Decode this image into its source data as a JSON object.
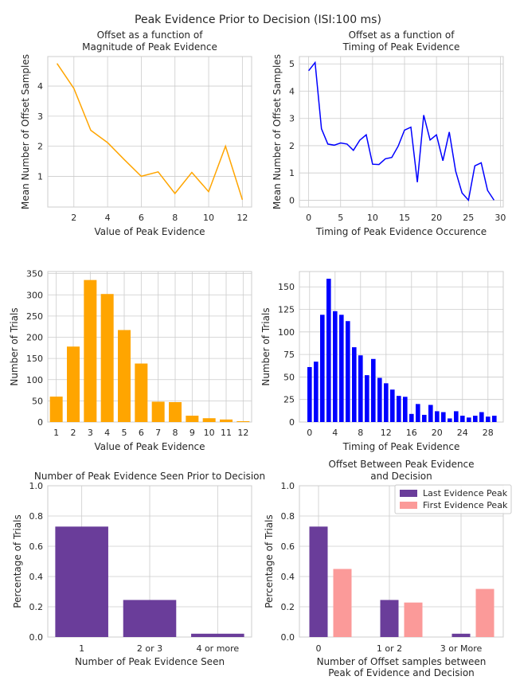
{
  "figure": {
    "suptitle": "Peak Evidence Prior to Decision (ISI:100 ms)"
  },
  "chart_data": [
    {
      "id": "p1",
      "type": "line",
      "title": [
        "Offset as a function of",
        "Magnitude of Peak Evidence"
      ],
      "xlabel": [
        "Value of Peak Evidence"
      ],
      "ylabel": "Mean Number of Offset Samples",
      "color": "#ffa500",
      "x": [
        1,
        2,
        3,
        4,
        5,
        6,
        7,
        8,
        9,
        10,
        11,
        12
      ],
      "y": [
        4.75,
        3.92,
        2.53,
        2.12,
        1.55,
        1.0,
        1.15,
        0.43,
        1.13,
        0.49,
        2.0,
        0.22
      ],
      "xlim": [
        0.45,
        12.55
      ],
      "ylim": [
        -0.02,
        4.98
      ],
      "xticks": [
        2,
        4,
        6,
        8,
        10,
        12
      ],
      "yticks": [
        1,
        2,
        3,
        4
      ],
      "grid": true
    },
    {
      "id": "p2",
      "type": "line",
      "title": [
        "Offset as a function of",
        "Timing of Peak Evidence"
      ],
      "xlabel": [
        "Timing of Peak Evidence Occurence"
      ],
      "ylabel": "Mean Number of Offset Samples",
      "color": "#0000ff",
      "x": [
        0,
        1,
        2,
        3,
        4,
        5,
        6,
        7,
        8,
        9,
        10,
        11,
        12,
        13,
        14,
        15,
        16,
        17,
        18,
        19,
        20,
        21,
        22,
        23,
        24,
        25,
        26,
        27,
        28,
        29
      ],
      "y": [
        4.75,
        5.05,
        2.62,
        2.06,
        2.02,
        2.1,
        2.06,
        1.83,
        2.2,
        2.4,
        1.32,
        1.31,
        1.52,
        1.57,
        1.98,
        2.57,
        2.68,
        0.66,
        3.12,
        2.21,
        2.4,
        1.45,
        2.5,
        1.07,
        0.27,
        0.0,
        1.26,
        1.37,
        0.36,
        0.0
      ],
      "xlim": [
        -1.45,
        30.45
      ],
      "ylim": [
        -0.25,
        5.27
      ],
      "xticks": [
        0,
        5,
        10,
        15,
        20,
        25,
        30
      ],
      "yticks": [
        0,
        1,
        2,
        3,
        4,
        5
      ],
      "grid": true
    },
    {
      "id": "p3",
      "type": "bar",
      "title": [],
      "xlabel": [
        "Value of Peak Evidence"
      ],
      "ylabel": "Number of Trials",
      "color": "#ffa500",
      "categories": [
        "1",
        "2",
        "3",
        "4",
        "5",
        "6",
        "7",
        "8",
        "9",
        "10",
        "11",
        "12"
      ],
      "values": [
        60,
        178,
        335,
        302,
        217,
        138,
        48,
        47,
        15,
        9,
        6,
        2
      ],
      "ylim": [
        0,
        355
      ],
      "yticks": [
        0,
        50,
        100,
        150,
        200,
        250,
        300,
        350
      ],
      "grid": true
    },
    {
      "id": "p4",
      "type": "bar",
      "title": [],
      "xlabel": [
        "Timing of Peak Evidence"
      ],
      "ylabel": "Number of Trials",
      "color": "#0000ff",
      "x": [
        0,
        1,
        2,
        3,
        4,
        5,
        6,
        7,
        8,
        9,
        10,
        11,
        12,
        13,
        14,
        15,
        16,
        17,
        18,
        19,
        20,
        21,
        22,
        23,
        24,
        25,
        26,
        27,
        28,
        29
      ],
      "values": [
        61,
        67,
        119,
        159,
        123,
        119,
        112,
        83,
        74,
        52,
        70,
        49,
        43,
        36,
        29,
        28,
        9,
        20,
        8,
        19,
        12,
        11,
        4,
        12,
        7,
        5,
        7,
        11,
        6,
        7
      ],
      "xlim": [
        -1.6,
        30.4
      ],
      "ylim": [
        0,
        167
      ],
      "xticks": [
        0,
        4,
        8,
        12,
        16,
        20,
        24,
        28
      ],
      "yticks": [
        0,
        25,
        50,
        75,
        100,
        125,
        150
      ],
      "grid": true
    },
    {
      "id": "p5",
      "type": "bar",
      "title": [
        "Number of Peak Evidence Seen Prior to Decision"
      ],
      "xlabel": [
        "Number of Peak Evidence Seen"
      ],
      "ylabel": "Percentage of Trials",
      "color": "#6a3d9a",
      "categories": [
        "1",
        "2 or 3",
        "4 or more"
      ],
      "values": [
        0.73,
        0.245,
        0.022
      ],
      "ylim": [
        0,
        1.0
      ],
      "yticks": [
        "0.0",
        "0.2",
        "0.4",
        "0.6",
        "0.8",
        "1.0"
      ],
      "grid": true
    },
    {
      "id": "p6",
      "type": "bar",
      "title": [
        "Offset Between Peak Evidence",
        "and Decision"
      ],
      "xlabel": [
        "Number of Offset samples between",
        "Peak of Evidence and Decision"
      ],
      "ylabel": "Percentage of Trials",
      "categories": [
        "0",
        "1 or 2",
        "3 or More"
      ],
      "series": [
        {
          "name": "Last Evidence Peak",
          "color": "#6a3d9a",
          "values": [
            0.73,
            0.245,
            0.022
          ]
        },
        {
          "name": "First Evidence Peak",
          "color": "#fb9a99",
          "values": [
            0.45,
            0.228,
            0.318
          ]
        }
      ],
      "ylim": [
        0,
        1.0
      ],
      "yticks": [
        "0.0",
        "0.2",
        "0.4",
        "0.6",
        "0.8",
        "1.0"
      ],
      "legend": "top-right",
      "grid": true
    }
  ]
}
